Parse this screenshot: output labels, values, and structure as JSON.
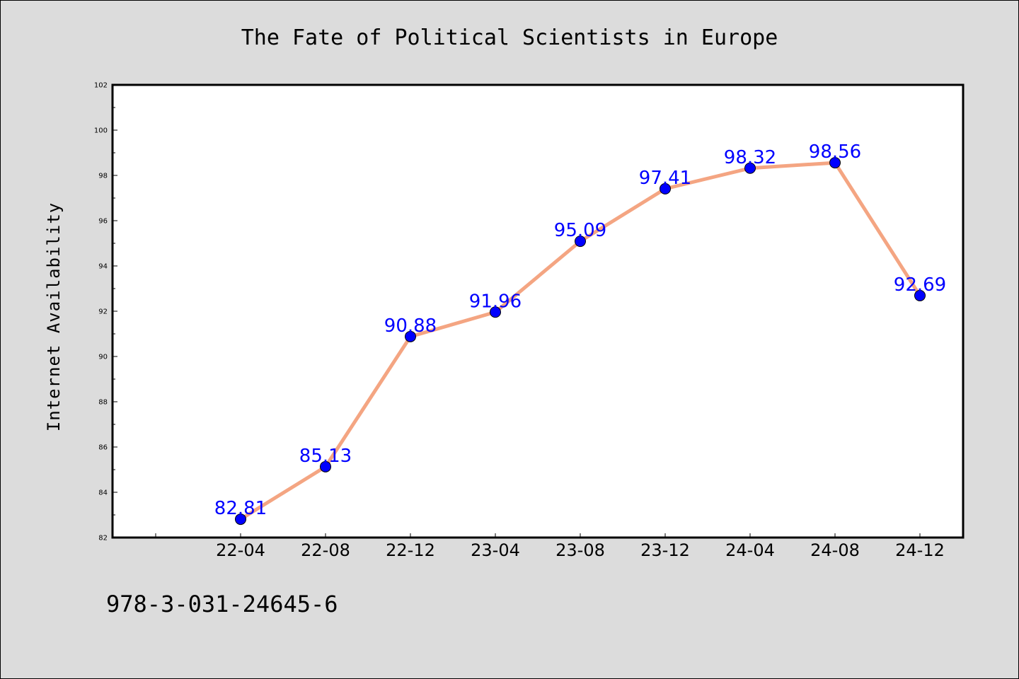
{
  "chart_data": {
    "type": "line",
    "title": "The Fate of Political Scientists in Europe",
    "xlabel": "",
    "ylabel": "Internet Availability",
    "categories": [
      "22-04",
      "22-08",
      "22-12",
      "23-04",
      "23-08",
      "23-12",
      "24-04",
      "24-08",
      "24-12"
    ],
    "series": [
      {
        "values": [
          82.81,
          85.13,
          90.88,
          91.96,
          95.09,
          97.41,
          98.32,
          98.56,
          92.69
        ],
        "data_labels": [
          "82.81",
          "85.13",
          "90.88",
          "91.96",
          "95.09",
          "97.41",
          "98.32",
          "98.56",
          "92.69"
        ]
      }
    ],
    "ylim": [
      82,
      102
    ],
    "yticks": [
      "82",
      "84",
      "86",
      "88",
      "90",
      "92",
      "94",
      "96",
      "98",
      "100",
      "102"
    ],
    "grid": false,
    "legend": "none",
    "colors": {
      "line": "#f4a582",
      "marker": "#0000ff",
      "data_label": "#0000ff",
      "background": "#dcdcdc",
      "plot_background": "#ffffff"
    }
  },
  "footer": {
    "isbn": "978-3-031-24645-6"
  }
}
